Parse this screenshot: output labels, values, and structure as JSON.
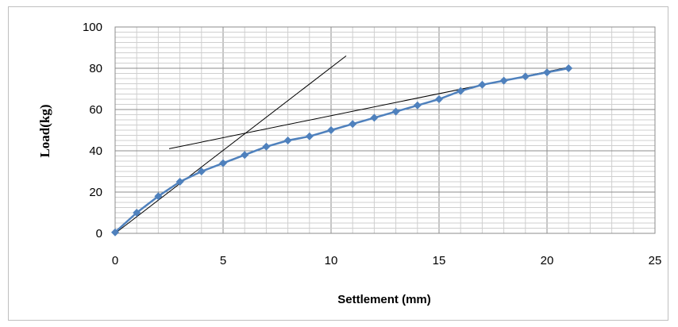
{
  "chart_data": {
    "type": "scatter",
    "title": "",
    "xlabel": "Settlement  (mm)",
    "ylabel": "Load(kg)",
    "xlim": [
      0,
      25
    ],
    "ylim": [
      0,
      100
    ],
    "x_ticks": [
      0,
      5,
      10,
      15,
      20,
      25
    ],
    "y_ticks": [
      0,
      20,
      40,
      60,
      80,
      100
    ],
    "x_minor_step": 1,
    "y_minor_step": 2.5,
    "grid": true,
    "legend": "none",
    "series": [
      {
        "color": "#4f81bd",
        "marker": "diamond",
        "x": [
          0,
          1,
          2,
          3,
          4,
          5,
          6,
          7,
          8,
          9,
          10,
          11,
          12,
          13,
          14,
          15,
          16,
          17,
          18,
          19,
          20,
          21
        ],
        "y": [
          0.5,
          10,
          18,
          25,
          30,
          34,
          38,
          42,
          45,
          47,
          50,
          53,
          56,
          59,
          62,
          65,
          69,
          72,
          74,
          76,
          78,
          80
        ]
      }
    ],
    "tangent_lines": [
      {
        "x": [
          0,
          10.7
        ],
        "y": [
          0,
          86
        ],
        "color": "#000000"
      },
      {
        "x": [
          2.5,
          21
        ],
        "y": [
          41,
          80.5
        ],
        "color": "#000000"
      }
    ]
  }
}
